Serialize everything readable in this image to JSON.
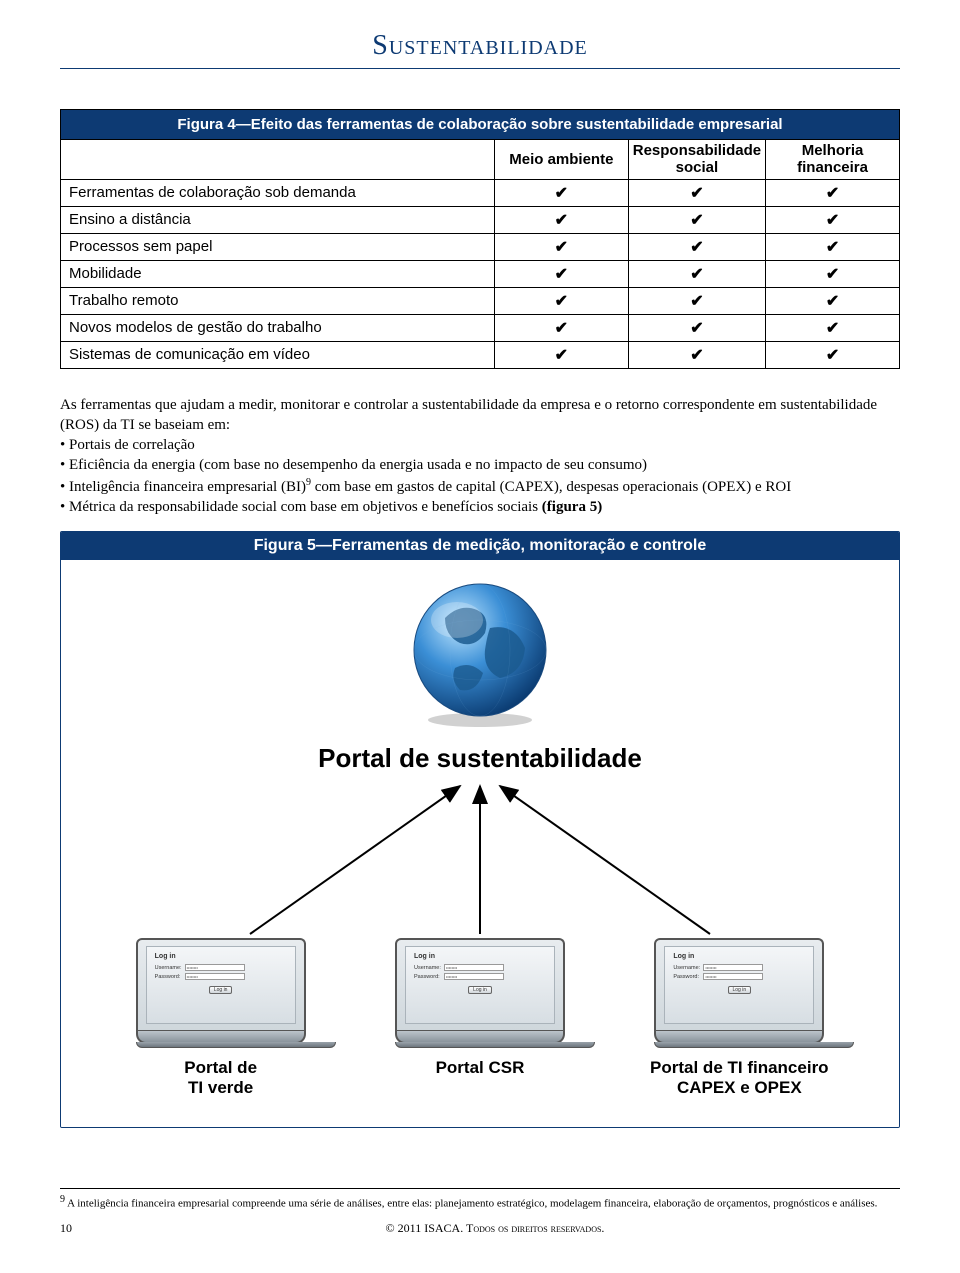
{
  "page": {
    "title": "Sustentabilidade",
    "title_color": "#0d3a73",
    "page_number": "10",
    "copyright": "© 2011 ISACA. Todos os direitos reservados."
  },
  "fig4": {
    "caption": "Figura 4—Efeito das ferramentas de colaboração sobre sustentabilidade empresarial",
    "columns": [
      "Meio ambiente",
      "Responsabilidade social",
      "Melhoria financeira"
    ],
    "rows": [
      {
        "label": "Ferramentas de colaboração sob demanda",
        "vals": [
          "✔",
          "✔",
          "✔"
        ]
      },
      {
        "label": "Ensino a distância",
        "vals": [
          "✔",
          "✔",
          "✔"
        ]
      },
      {
        "label": "Processos sem papel",
        "vals": [
          "✔",
          "✔",
          "✔"
        ]
      },
      {
        "label": "Mobilidade",
        "vals": [
          "✔",
          "✔",
          "✔"
        ]
      },
      {
        "label": "Trabalho remoto",
        "vals": [
          "✔",
          "✔",
          "✔"
        ]
      },
      {
        "label": "Novos modelos de gestão do trabalho",
        "vals": [
          "✔",
          "✔",
          "✔"
        ]
      },
      {
        "label": "Sistemas de comunicação em vídeo",
        "vals": [
          "✔",
          "✔",
          "✔"
        ]
      }
    ],
    "col_widths": [
      "52%",
      "16%",
      "16%",
      "16%"
    ],
    "header_bg": "#0d3a73"
  },
  "body": {
    "intro": "As ferramentas que ajudam a medir, monitorar e controlar a sustentabilidade da empresa e o retorno correspondente em sustentabilidade (ROS) da TI se baseiam em:",
    "bullets": [
      "Portais de correlação",
      "Eficiência da energia (com base no desempenho da energia usada e no impacto de seu consumo)",
      "Inteligência financeira empresarial (BI)⁹ com base em gastos de capital (CAPEX), despesas operacionais (OPEX) e ROI",
      "Métrica da responsabilidade social com base em objetivos e benefícios sociais (figura 5)"
    ],
    "bullet3_plain": "Inteligência financeira empresarial (BI)",
    "bullet3_sup": "9",
    "bullet3_rest": " com base em gastos de capital (CAPEX), despesas operacionais (OPEX) e ROI",
    "bullet4_plain": "Métrica da responsabilidade social com base em objetivos e benefícios sociais ",
    "bullet4_bold": "(figura 5)"
  },
  "fig5": {
    "caption": "Figura 5—Ferramentas de medição, monitoração e controle",
    "subtitle": "Portal de sustentabilidade",
    "header_bg": "#0d3a73",
    "laptops": [
      {
        "label_line1": "Portal de",
        "label_line2": "TI verde"
      },
      {
        "label_line1": "Portal CSR",
        "label_line2": ""
      },
      {
        "label_line1": "Portal de TI financeiro",
        "label_line2": "CAPEX e OPEX"
      }
    ],
    "login": {
      "title": "Log in",
      "username_label": "Username:",
      "password_label": "Password:",
      "value_mask": "••••••••",
      "button": "Log in"
    }
  },
  "footnote": {
    "marker": "9",
    "text": " A inteligência financeira empresarial compreende uma série de análises, entre elas: planejamento estratégico, modelagem financeira, elaboração de orçamentos, prognósticos e análises."
  }
}
